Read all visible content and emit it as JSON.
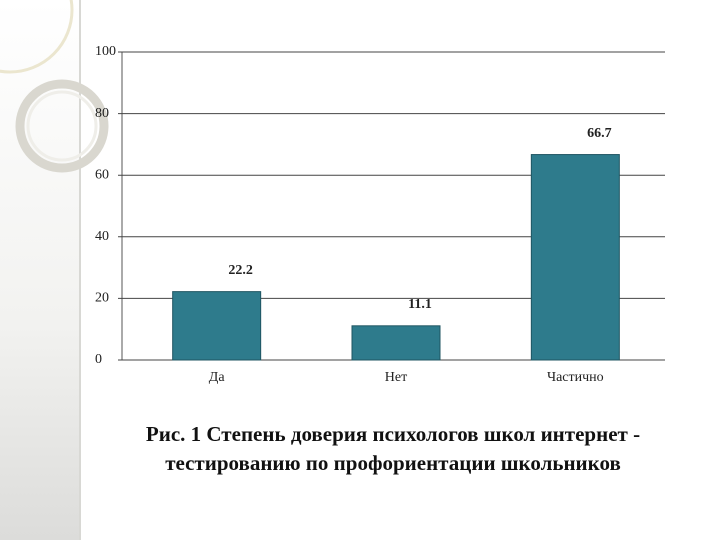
{
  "chart_data": {
    "type": "bar",
    "title": "Рис. 1 Степень доверия психологов школ интернет - тестированию по профориентации школьников",
    "categories": [
      "Да",
      "Нет",
      "Частично"
    ],
    "values": [
      22.2,
      11.1,
      66.7
    ],
    "color": "#2e7b8c",
    "ylim": [
      0,
      100
    ],
    "yticks": [
      0,
      20,
      40,
      60,
      80,
      100
    ],
    "grid": true
  }
}
